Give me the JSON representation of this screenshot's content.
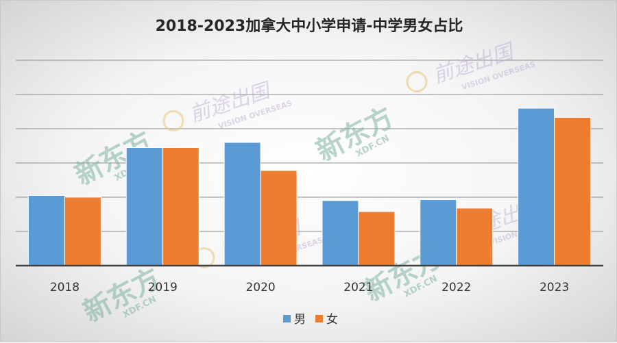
{
  "chart_data": {
    "type": "bar",
    "title": "2018-2023加拿大中小学申请-中学男女占比",
    "categories": [
      "2018",
      "2019",
      "2020",
      "2021",
      "2022",
      "2023"
    ],
    "series": [
      {
        "name": "男",
        "color": "#5b9bd5",
        "values": [
          2.05,
          3.45,
          3.6,
          1.9,
          1.93,
          4.6
        ]
      },
      {
        "name": "女",
        "color": "#ed7d31",
        "values": [
          2.0,
          3.45,
          2.78,
          1.58,
          1.68,
          4.33
        ]
      }
    ],
    "ylim": [
      0,
      6
    ],
    "y_gridlines": [
      1,
      2,
      3,
      4,
      5,
      6
    ],
    "y_tick_labels_shown": false,
    "grid": true,
    "legend_position": "bottom",
    "watermarks": [
      {
        "main": "新东方",
        "sub": "XDF.CN"
      },
      {
        "main": "前途出国",
        "sub": "VISION OVERSEAS"
      }
    ]
  }
}
